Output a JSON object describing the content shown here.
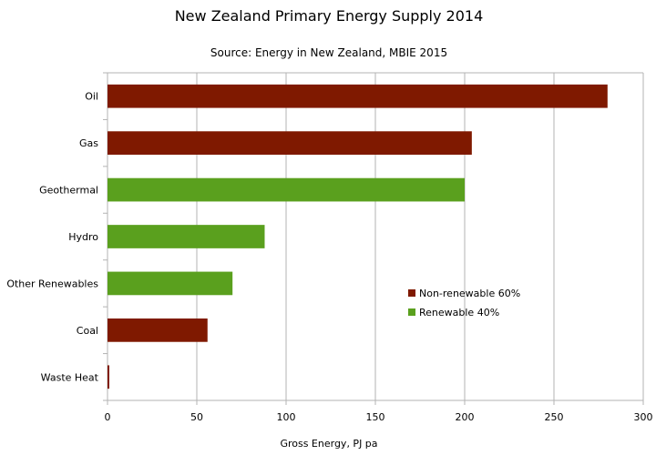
{
  "chart_data": {
    "type": "bar",
    "orientation": "horizontal",
    "title": "New Zealand Primary Energy Supply 2014",
    "subtitle": "Source: Energy in New Zealand, MBIE 2015",
    "xlabel": "Gross Energy, PJ pa",
    "ylabel": "",
    "xlim": [
      0,
      300
    ],
    "xticks": [
      0,
      50,
      100,
      150,
      200,
      250,
      300
    ],
    "grid": "vertical",
    "legend_position": "right",
    "categories": [
      "Oil",
      "Gas",
      "Geothermal",
      "Hydro",
      "Other Renewables",
      "Coal",
      "Waste Heat"
    ],
    "values": [
      280,
      204,
      200,
      88,
      70,
      56,
      1
    ],
    "bar_groups": [
      "non-renewable",
      "non-renewable",
      "renewable",
      "renewable",
      "renewable",
      "non-renewable",
      "non-renewable"
    ],
    "legend": [
      {
        "key": "non-renewable",
        "label": "Non-renewable 60%",
        "color": "#7f1900"
      },
      {
        "key": "renewable",
        "label": "Renewable 40%",
        "color": "#5aa01e"
      }
    ]
  }
}
